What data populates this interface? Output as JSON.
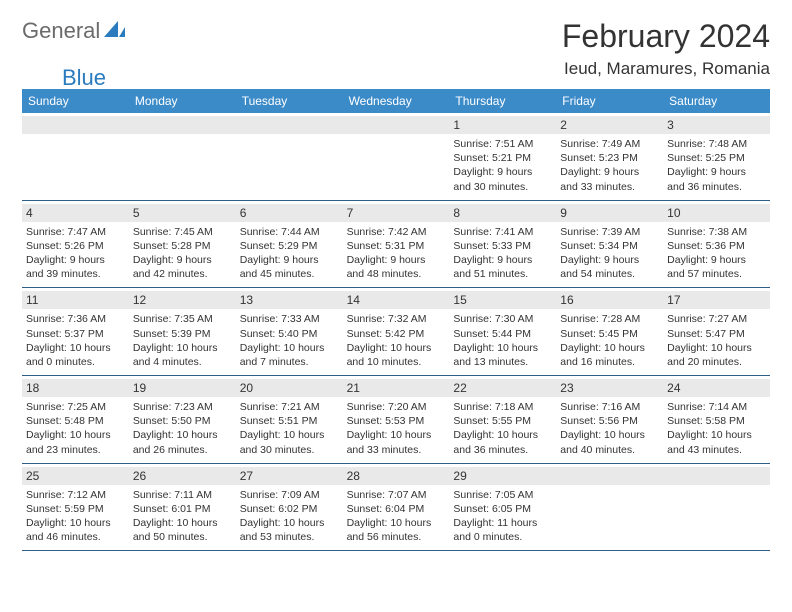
{
  "brand": {
    "part1": "General",
    "part2": "Blue"
  },
  "title": "February 2024",
  "location": "Ieud, Maramures, Romania",
  "colors": {
    "header_bg": "#3b8bc9",
    "daynum_bg": "#e9e9e9",
    "rule": "#2f5e86",
    "brand_blue": "#2b7bbf",
    "brand_gray": "#6b6b6b"
  },
  "day_headers": [
    "Sunday",
    "Monday",
    "Tuesday",
    "Wednesday",
    "Thursday",
    "Friday",
    "Saturday"
  ],
  "weeks": [
    [
      null,
      null,
      null,
      null,
      {
        "n": "1",
        "sr": "7:51 AM",
        "ss": "5:21 PM",
        "dl": "9 hours and 30 minutes."
      },
      {
        "n": "2",
        "sr": "7:49 AM",
        "ss": "5:23 PM",
        "dl": "9 hours and 33 minutes."
      },
      {
        "n": "3",
        "sr": "7:48 AM",
        "ss": "5:25 PM",
        "dl": "9 hours and 36 minutes."
      }
    ],
    [
      {
        "n": "4",
        "sr": "7:47 AM",
        "ss": "5:26 PM",
        "dl": "9 hours and 39 minutes."
      },
      {
        "n": "5",
        "sr": "7:45 AM",
        "ss": "5:28 PM",
        "dl": "9 hours and 42 minutes."
      },
      {
        "n": "6",
        "sr": "7:44 AM",
        "ss": "5:29 PM",
        "dl": "9 hours and 45 minutes."
      },
      {
        "n": "7",
        "sr": "7:42 AM",
        "ss": "5:31 PM",
        "dl": "9 hours and 48 minutes."
      },
      {
        "n": "8",
        "sr": "7:41 AM",
        "ss": "5:33 PM",
        "dl": "9 hours and 51 minutes."
      },
      {
        "n": "9",
        "sr": "7:39 AM",
        "ss": "5:34 PM",
        "dl": "9 hours and 54 minutes."
      },
      {
        "n": "10",
        "sr": "7:38 AM",
        "ss": "5:36 PM",
        "dl": "9 hours and 57 minutes."
      }
    ],
    [
      {
        "n": "11",
        "sr": "7:36 AM",
        "ss": "5:37 PM",
        "dl": "10 hours and 0 minutes."
      },
      {
        "n": "12",
        "sr": "7:35 AM",
        "ss": "5:39 PM",
        "dl": "10 hours and 4 minutes."
      },
      {
        "n": "13",
        "sr": "7:33 AM",
        "ss": "5:40 PM",
        "dl": "10 hours and 7 minutes."
      },
      {
        "n": "14",
        "sr": "7:32 AM",
        "ss": "5:42 PM",
        "dl": "10 hours and 10 minutes."
      },
      {
        "n": "15",
        "sr": "7:30 AM",
        "ss": "5:44 PM",
        "dl": "10 hours and 13 minutes."
      },
      {
        "n": "16",
        "sr": "7:28 AM",
        "ss": "5:45 PM",
        "dl": "10 hours and 16 minutes."
      },
      {
        "n": "17",
        "sr": "7:27 AM",
        "ss": "5:47 PM",
        "dl": "10 hours and 20 minutes."
      }
    ],
    [
      {
        "n": "18",
        "sr": "7:25 AM",
        "ss": "5:48 PM",
        "dl": "10 hours and 23 minutes."
      },
      {
        "n": "19",
        "sr": "7:23 AM",
        "ss": "5:50 PM",
        "dl": "10 hours and 26 minutes."
      },
      {
        "n": "20",
        "sr": "7:21 AM",
        "ss": "5:51 PM",
        "dl": "10 hours and 30 minutes."
      },
      {
        "n": "21",
        "sr": "7:20 AM",
        "ss": "5:53 PM",
        "dl": "10 hours and 33 minutes."
      },
      {
        "n": "22",
        "sr": "7:18 AM",
        "ss": "5:55 PM",
        "dl": "10 hours and 36 minutes."
      },
      {
        "n": "23",
        "sr": "7:16 AM",
        "ss": "5:56 PM",
        "dl": "10 hours and 40 minutes."
      },
      {
        "n": "24",
        "sr": "7:14 AM",
        "ss": "5:58 PM",
        "dl": "10 hours and 43 minutes."
      }
    ],
    [
      {
        "n": "25",
        "sr": "7:12 AM",
        "ss": "5:59 PM",
        "dl": "10 hours and 46 minutes."
      },
      {
        "n": "26",
        "sr": "7:11 AM",
        "ss": "6:01 PM",
        "dl": "10 hours and 50 minutes."
      },
      {
        "n": "27",
        "sr": "7:09 AM",
        "ss": "6:02 PM",
        "dl": "10 hours and 53 minutes."
      },
      {
        "n": "28",
        "sr": "7:07 AM",
        "ss": "6:04 PM",
        "dl": "10 hours and 56 minutes."
      },
      {
        "n": "29",
        "sr": "7:05 AM",
        "ss": "6:05 PM",
        "dl": "11 hours and 0 minutes."
      },
      null,
      null
    ]
  ],
  "labels": {
    "sunrise": "Sunrise: ",
    "sunset": "Sunset: ",
    "daylight": "Daylight: "
  }
}
